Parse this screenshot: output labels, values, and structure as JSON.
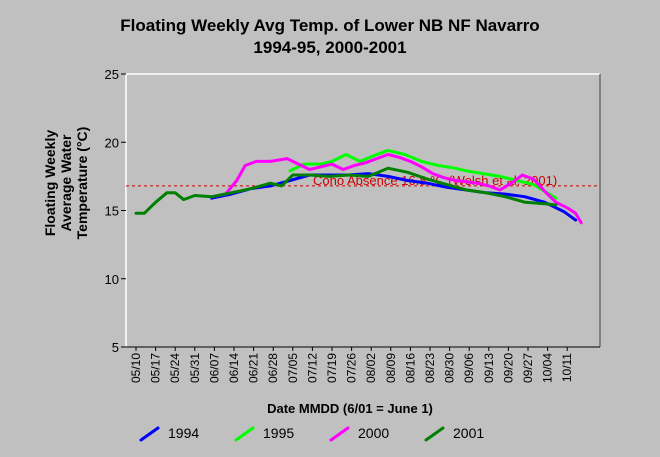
{
  "chart_data": {
    "type": "line",
    "title": "Floating Weekly Avg Temp. of Lower NB NF Navarro",
    "subtitle": "1994-95, 2000-2001",
    "xlabel": "Date MMDD (6/01 = June 1)",
    "ylabel_lines": [
      "Floating Weekly",
      "Average Water",
      "Temperature (°C)"
    ],
    "x_ticks": [
      "05/10",
      "05/17",
      "05/24",
      "05/31",
      "06/07",
      "06/14",
      "06/21",
      "06/28",
      "07/05",
      "07/12",
      "07/19",
      "07/26",
      "08/02",
      "08/09",
      "08/16",
      "08/23",
      "08/30",
      "09/06",
      "09/13",
      "09/20",
      "09/27",
      "10/04",
      "10/11"
    ],
    "y_ticks": [
      5,
      10,
      15,
      20,
      25
    ],
    "ylim": [
      5,
      25
    ],
    "xlim_days": [
      0,
      159
    ],
    "threshold": {
      "value": 16.8,
      "label": "Coho Absence 16.8 °C (Welsh et al. 2001)",
      "color": "#cc0000"
    },
    "series": [
      {
        "name": "1994",
        "color": "#0000ff",
        "points": [
          [
            27,
            15.9
          ],
          [
            34,
            16.2
          ],
          [
            41,
            16.6
          ],
          [
            48,
            16.8
          ],
          [
            55,
            17.2
          ],
          [
            62,
            17.6
          ],
          [
            69,
            17.6
          ],
          [
            76,
            17.6
          ],
          [
            83,
            17.7
          ],
          [
            90,
            17.5
          ],
          [
            97,
            17.2
          ],
          [
            104,
            17.0
          ],
          [
            111,
            16.7
          ],
          [
            118,
            16.5
          ],
          [
            125,
            16.3
          ],
          [
            132,
            16.2
          ],
          [
            139,
            16.0
          ],
          [
            146,
            15.6
          ],
          [
            153,
            14.9
          ],
          [
            157,
            14.3
          ]
        ]
      },
      {
        "name": "1995",
        "color": "#00ff00",
        "points": [
          [
            55,
            17.9
          ],
          [
            60,
            18.4
          ],
          [
            66,
            18.4
          ],
          [
            70,
            18.6
          ],
          [
            75,
            19.1
          ],
          [
            80,
            18.6
          ],
          [
            86,
            19.1
          ],
          [
            90,
            19.4
          ],
          [
            96,
            19.1
          ],
          [
            102,
            18.6
          ],
          [
            108,
            18.3
          ],
          [
            114,
            18.1
          ],
          [
            118,
            17.9
          ],
          [
            124,
            17.7
          ],
          [
            130,
            17.5
          ],
          [
            136,
            17.2
          ],
          [
            142,
            16.9
          ],
          [
            146,
            16.4
          ],
          [
            150,
            15.9
          ]
        ]
      },
      {
        "name": "2000",
        "color": "#ff00ff",
        "points": [
          [
            27,
            16.0
          ],
          [
            32,
            16.2
          ],
          [
            36,
            17.2
          ],
          [
            39,
            18.3
          ],
          [
            43,
            18.6
          ],
          [
            48,
            18.6
          ],
          [
            54,
            18.8
          ],
          [
            58,
            18.4
          ],
          [
            62,
            18.0
          ],
          [
            66,
            18.2
          ],
          [
            70,
            18.4
          ],
          [
            74,
            18.0
          ],
          [
            78,
            18.3
          ],
          [
            82,
            18.5
          ],
          [
            86,
            18.8
          ],
          [
            90,
            19.1
          ],
          [
            94,
            18.9
          ],
          [
            98,
            18.6
          ],
          [
            102,
            18.2
          ],
          [
            106,
            17.7
          ],
          [
            110,
            17.4
          ],
          [
            114,
            17.2
          ],
          [
            118,
            17.1
          ],
          [
            122,
            17.0
          ],
          [
            126,
            16.8
          ],
          [
            130,
            16.5
          ],
          [
            134,
            17.0
          ],
          [
            138,
            17.6
          ],
          [
            142,
            17.3
          ],
          [
            146,
            16.4
          ],
          [
            150,
            15.6
          ],
          [
            154,
            15.2
          ],
          [
            157,
            14.8
          ],
          [
            159,
            14.1
          ]
        ]
      },
      {
        "name": "2001",
        "color": "#008000",
        "points": [
          [
            0,
            14.8
          ],
          [
            3,
            14.8
          ],
          [
            7,
            15.6
          ],
          [
            11,
            16.3
          ],
          [
            14,
            16.3
          ],
          [
            17,
            15.8
          ],
          [
            21,
            16.1
          ],
          [
            27,
            16.0
          ],
          [
            34,
            16.3
          ],
          [
            41,
            16.6
          ],
          [
            48,
            17.0
          ],
          [
            52,
            16.8
          ],
          [
            56,
            17.6
          ],
          [
            62,
            17.6
          ],
          [
            69,
            17.5
          ],
          [
            76,
            17.6
          ],
          [
            83,
            17.5
          ],
          [
            90,
            18.1
          ],
          [
            97,
            17.8
          ],
          [
            104,
            17.3
          ],
          [
            111,
            16.9
          ],
          [
            118,
            16.5
          ],
          [
            125,
            16.3
          ],
          [
            132,
            16.0
          ],
          [
            139,
            15.6
          ],
          [
            146,
            15.5
          ],
          [
            150,
            15.4
          ]
        ]
      }
    ]
  }
}
